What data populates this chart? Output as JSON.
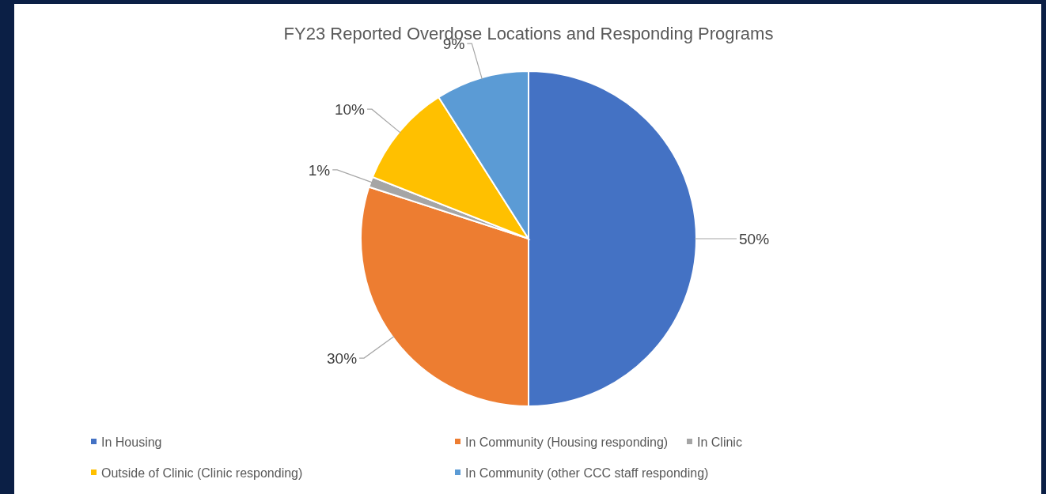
{
  "chart_data": {
    "type": "pie",
    "title": "FY23 Reported Overdose Locations and Responding Programs",
    "categories": [
      "In Housing",
      "In Community (Housing responding)",
      "In Clinic",
      "Outside of Clinic (Clinic responding)",
      "In Community (other CCC staff responding)"
    ],
    "values": [
      50,
      30,
      1,
      10,
      9
    ],
    "colors": [
      "#4472c4",
      "#ed7d31",
      "#a5a5a5",
      "#ffc000",
      "#5b9bd5"
    ],
    "value_labels": [
      "50%",
      "30%",
      "1%",
      "10%",
      "9%"
    ],
    "legend": "bottom"
  }
}
